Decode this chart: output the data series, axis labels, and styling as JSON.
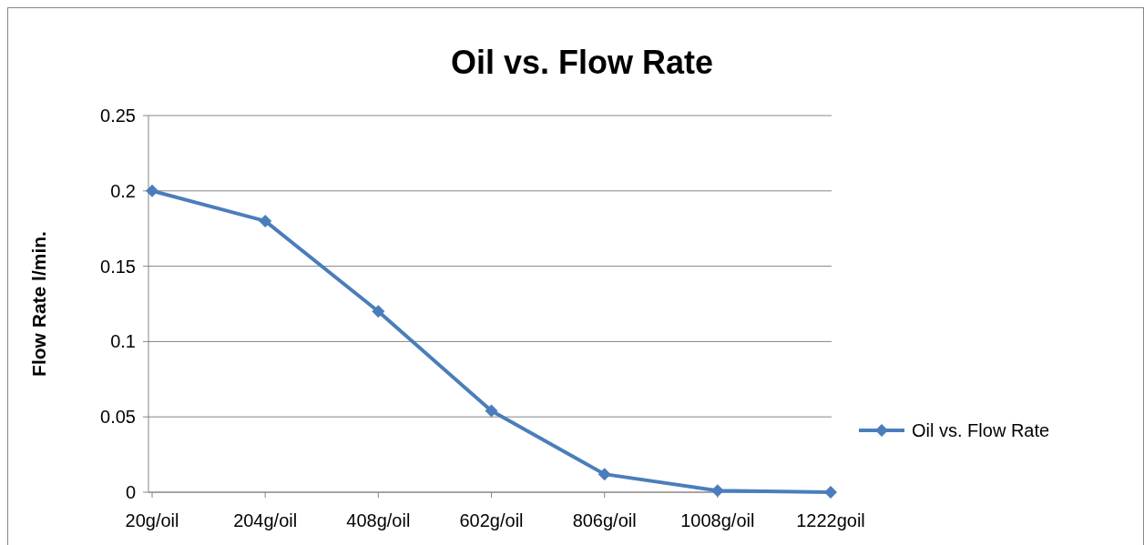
{
  "chart_data": {
    "type": "line",
    "title": "Oil vs. Flow Rate",
    "ylabel": "Flow Rate l/min.",
    "categories": [
      "20g/oil",
      "204g/oil",
      "408g/oil",
      "602g/oil",
      "806g/oil",
      "1008g/oil",
      "1222goil"
    ],
    "series": [
      {
        "name": "Oil vs. Flow Rate",
        "color": "#4a7ebb",
        "values": [
          0.2,
          0.18,
          0.12,
          0.054,
          0.012,
          0.001,
          0.0
        ]
      }
    ],
    "ylim": [
      0,
      0.25
    ],
    "yticks": [
      0,
      0.05,
      0.1,
      0.15,
      0.2,
      0.25
    ],
    "grid": "y",
    "legend": "right",
    "marker": "diamond",
    "line_style": "solid"
  }
}
